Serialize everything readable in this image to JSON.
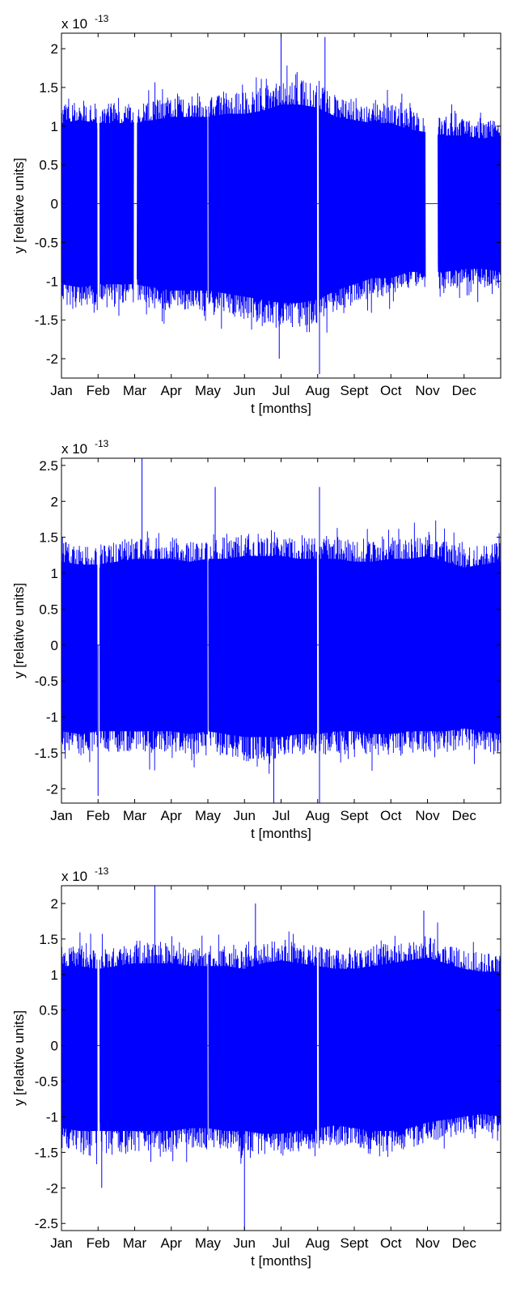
{
  "chart_data": [
    {
      "type": "line",
      "xlabel": "t [months]",
      "ylabel": "y [relative units]",
      "multiplier": "x 10",
      "multiplier_exp": "-13",
      "x_ticks": [
        "Jan",
        "Feb",
        "Mar",
        "Apr",
        "May",
        "Jun",
        "Jul",
        "Aug",
        "Sept",
        "Oct",
        "Nov",
        "Dec"
      ],
      "y_ticks": [
        2,
        1.5,
        1,
        0.5,
        0,
        -0.5,
        -1,
        -1.5,
        -2
      ],
      "y_tick_labels": [
        "2",
        "1.5",
        "1",
        "0.5",
        "0",
        "-0.5",
        "-1",
        "-1.5",
        "-2"
      ],
      "ylim": [
        -2.25,
        2.2
      ],
      "series_color": "#0000ff",
      "series": [
        {
          "envelope": {
            "months": [
              0,
              0.5,
              1,
              1.5,
              2,
              2.5,
              3,
              3.5,
              4,
              4.5,
              5,
              5.5,
              6,
              6.5,
              7,
              7.5,
              8,
              8.5,
              9,
              9.5,
              10,
              10.5,
              11,
              11.5,
              12
            ],
            "upper": [
              1.3,
              1.35,
              1.3,
              1.3,
              1.3,
              1.35,
              1.4,
              1.4,
              1.4,
              1.45,
              1.45,
              1.5,
              1.6,
              1.6,
              1.55,
              1.4,
              1.35,
              1.3,
              1.3,
              1.2,
              1.15,
              1.1,
              1.1,
              1.05,
              1.1
            ],
            "lower": [
              -1.3,
              -1.35,
              -1.3,
              -1.3,
              -1.3,
              -1.35,
              -1.4,
              -1.4,
              -1.4,
              -1.45,
              -1.5,
              -1.55,
              -1.6,
              -1.6,
              -1.55,
              -1.4,
              -1.3,
              -1.2,
              -1.2,
              -1.1,
              -1.1,
              -1.1,
              -1.05,
              -1.05,
              -1.1
            ]
          },
          "gaps": [
            [
              0.98,
              1.04
            ],
            [
              1.98,
              2.06
            ],
            [
              3.99,
              4.02
            ],
            [
              6.98,
              7.03
            ],
            [
              9.95,
              10.28
            ]
          ],
          "spikes": [
            [
              6.0,
              2.15
            ],
            [
              7.05,
              -2.2
            ],
            [
              7.2,
              2.15
            ],
            [
              5.95,
              -2.0
            ],
            [
              10.7,
              -0.9
            ],
            [
              10.7,
              0.7
            ]
          ]
        }
      ]
    },
    {
      "type": "line",
      "xlabel": "t [months]",
      "ylabel": "y [relative units]",
      "multiplier": "x 10",
      "multiplier_exp": "-13",
      "x_ticks": [
        "Jan",
        "Feb",
        "Mar",
        "Apr",
        "May",
        "Jun",
        "Jul",
        "Aug",
        "Sept",
        "Oct",
        "Nov",
        "Dec"
      ],
      "y_ticks": [
        2.5,
        2,
        1.5,
        1,
        0.5,
        0,
        -0.5,
        -1,
        -1.5,
        -2
      ],
      "y_tick_labels": [
        "2.5",
        "2",
        "1.5",
        "1",
        "0.5",
        "0",
        "-0.5",
        "-1",
        "-1.5",
        "-2"
      ],
      "ylim": [
        -2.2,
        2.6
      ],
      "series_color": "#0000ff",
      "series": [
        {
          "envelope": {
            "months": [
              0,
              0.5,
              1,
              1.5,
              2,
              2.5,
              3,
              3.5,
              4,
              4.5,
              5,
              5.5,
              6,
              6.5,
              7,
              7.5,
              8,
              8.5,
              9,
              9.5,
              10,
              10.5,
              11,
              11.5,
              12
            ],
            "upper": [
              1.45,
              1.4,
              1.4,
              1.45,
              1.5,
              1.5,
              1.5,
              1.45,
              1.5,
              1.5,
              1.55,
              1.55,
              1.55,
              1.5,
              1.5,
              1.5,
              1.45,
              1.45,
              1.5,
              1.5,
              1.55,
              1.45,
              1.35,
              1.4,
              1.45
            ],
            "lower": [
              -1.5,
              -1.55,
              -1.5,
              -1.5,
              -1.5,
              -1.5,
              -1.5,
              -1.55,
              -1.5,
              -1.55,
              -1.6,
              -1.6,
              -1.6,
              -1.55,
              -1.55,
              -1.5,
              -1.5,
              -1.55,
              -1.55,
              -1.5,
              -1.5,
              -1.5,
              -1.45,
              -1.5,
              -1.55
            ]
          },
          "gaps": [
            [
              0.98,
              1.04
            ],
            [
              3.99,
              4.02
            ],
            [
              6.98,
              7.03
            ]
          ],
          "spikes": [
            [
              2.2,
              2.6
            ],
            [
              4.2,
              2.2
            ],
            [
              7.05,
              2.2
            ],
            [
              7.05,
              -2.2
            ],
            [
              5.8,
              -2.2
            ],
            [
              10.5,
              0.55
            ],
            [
              10.5,
              -0.7
            ],
            [
              1.0,
              -2.1
            ]
          ]
        }
      ]
    },
    {
      "type": "line",
      "xlabel": "t [months]",
      "ylabel": "y [relative units]",
      "multiplier": "x 10",
      "multiplier_exp": "-13",
      "x_ticks": [
        "Jan",
        "Feb",
        "Mar",
        "Apr",
        "May",
        "Jun",
        "Jul",
        "Aug",
        "Sept",
        "Oct",
        "Nov",
        "Dec"
      ],
      "y_ticks": [
        2,
        1.5,
        1,
        0.5,
        0,
        -0.5,
        -1,
        -1.5,
        -2,
        -2.5
      ],
      "y_tick_labels": [
        "2",
        "1.5",
        "1",
        "0.5",
        "0",
        "-0.5",
        "-1",
        "-1.5",
        "-2",
        "-2.5"
      ],
      "ylim": [
        -2.6,
        2.25
      ],
      "series_color": "#0000ff",
      "series": [
        {
          "envelope": {
            "months": [
              0,
              0.5,
              1,
              1.5,
              2,
              2.5,
              3,
              3.5,
              4,
              4.5,
              5,
              5.5,
              6,
              6.5,
              7,
              7.5,
              8,
              8.5,
              9,
              9.5,
              10,
              10.5,
              11,
              11.5,
              12
            ],
            "upper": [
              1.4,
              1.4,
              1.35,
              1.4,
              1.45,
              1.45,
              1.45,
              1.4,
              1.4,
              1.4,
              1.35,
              1.45,
              1.5,
              1.45,
              1.4,
              1.35,
              1.35,
              1.4,
              1.45,
              1.5,
              1.55,
              1.45,
              1.35,
              1.3,
              1.3
            ],
            "lower": [
              -1.45,
              -1.5,
              -1.5,
              -1.5,
              -1.5,
              -1.5,
              -1.5,
              -1.45,
              -1.45,
              -1.5,
              -1.5,
              -1.55,
              -1.55,
              -1.5,
              -1.45,
              -1.4,
              -1.45,
              -1.5,
              -1.5,
              -1.45,
              -1.35,
              -1.3,
              -1.25,
              -1.2,
              -1.25
            ]
          },
          "gaps": [
            [
              0.98,
              1.04
            ],
            [
              3.99,
              4.02
            ],
            [
              6.98,
              7.03
            ]
          ],
          "spikes": [
            [
              2.55,
              2.25
            ],
            [
              5.0,
              -2.6
            ],
            [
              5.3,
              2.0
            ],
            [
              1.1,
              -2.0
            ],
            [
              9.9,
              1.9
            ]
          ]
        }
      ]
    }
  ]
}
